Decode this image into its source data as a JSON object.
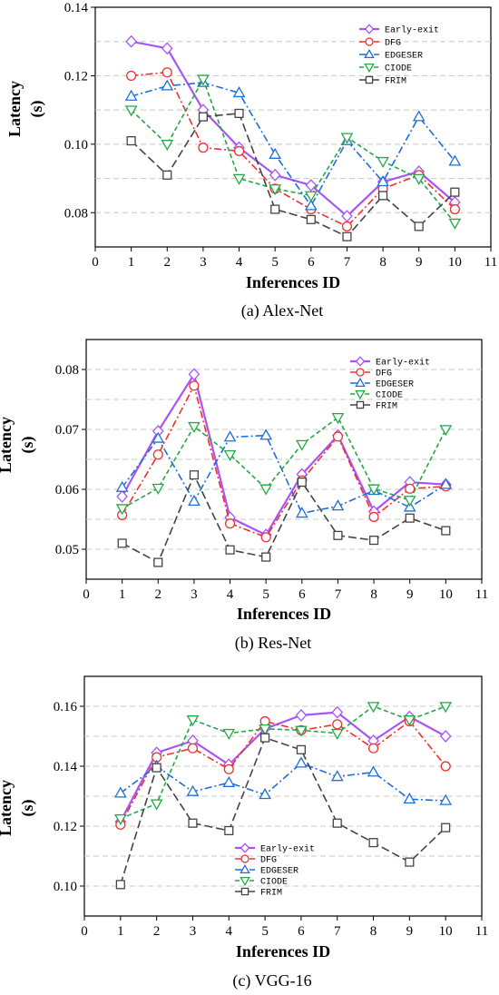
{
  "chart_data": [
    {
      "type": "line",
      "title": "",
      "caption": "(a) Alex-Net",
      "xlabel": "Inferences ID",
      "ylabel_line1": "Latency",
      "ylabel_line2": "(s)",
      "xlim": [
        0,
        11
      ],
      "ylim": [
        0.07,
        0.14
      ],
      "xticks": [
        "0",
        "1",
        "2",
        "3",
        "4",
        "5",
        "6",
        "7",
        "8",
        "9",
        "10",
        "11"
      ],
      "yticks": [
        {
          "v": 0.08,
          "label": "0.08"
        },
        {
          "v": 0.1,
          "label": "0.10"
        },
        {
          "v": 0.12,
          "label": "0.12"
        },
        {
          "v": 0.14,
          "label": "0.14"
        }
      ],
      "grid_lines": [
        0.08,
        0.09,
        0.1,
        0.11,
        0.12,
        0.13
      ],
      "legend_position": "top-right",
      "x": [
        1,
        2,
        3,
        4,
        5,
        6,
        7,
        8,
        9,
        10
      ],
      "series": [
        {
          "name": "Early-exit",
          "color": "#a855f7",
          "marker": "diamond",
          "dash": "solid",
          "width": 2.2,
          "values": [
            0.13,
            0.128,
            0.11,
            0.099,
            0.091,
            0.088,
            0.079,
            0.089,
            0.092,
            0.083
          ]
        },
        {
          "name": "DFG",
          "color": "#ef3030",
          "marker": "circle",
          "dash": "dashdot",
          "width": 1.6,
          "values": [
            0.12,
            0.121,
            0.099,
            0.098,
            0.087,
            0.081,
            0.076,
            0.087,
            0.091,
            0.081
          ]
        },
        {
          "name": "EDGESER",
          "color": "#1e6fd9",
          "marker": "triangle-up",
          "dash": "dashdot",
          "width": 1.6,
          "values": [
            0.114,
            0.117,
            0.118,
            0.115,
            0.097,
            0.082,
            0.101,
            0.089,
            0.108,
            0.095
          ]
        },
        {
          "name": "CIODE",
          "color": "#22a845",
          "marker": "triangle-down",
          "dash": "dash",
          "width": 1.6,
          "values": [
            0.11,
            0.1,
            0.119,
            0.09,
            0.087,
            0.085,
            0.102,
            0.095,
            0.09,
            0.077
          ]
        },
        {
          "name": "FRIM",
          "color": "#444444",
          "marker": "square",
          "dash": "longdash",
          "width": 1.6,
          "values": [
            0.101,
            0.091,
            0.108,
            0.109,
            0.081,
            0.078,
            0.073,
            0.085,
            0.076,
            0.086
          ]
        }
      ]
    },
    {
      "type": "line",
      "title": "",
      "caption": "(b) Res-Net",
      "xlabel": "Inferences ID",
      "ylabel_line1": "Latency",
      "ylabel_line2": "(s)",
      "xlim": [
        0,
        11
      ],
      "ylim": [
        0.045,
        0.085
      ],
      "xticks": [
        "0",
        "1",
        "2",
        "3",
        "4",
        "5",
        "6",
        "7",
        "8",
        "9",
        "10",
        "11"
      ],
      "yticks": [
        {
          "v": 0.05,
          "label": "0.05"
        },
        {
          "v": 0.06,
          "label": "0.06"
        },
        {
          "v": 0.07,
          "label": "0.07"
        },
        {
          "v": 0.08,
          "label": "0.08"
        }
      ],
      "grid_lines": [
        0.05,
        0.055,
        0.06,
        0.065,
        0.07,
        0.075,
        0.08
      ],
      "legend_position": "top-right",
      "x": [
        1,
        2,
        3,
        4,
        5,
        6,
        7,
        8,
        9,
        10
      ],
      "series": [
        {
          "name": "Early-exit",
          "color": "#a855f7",
          "marker": "diamond",
          "dash": "solid",
          "width": 2.2,
          "values": [
            0.0588,
            0.0697,
            0.0792,
            0.0553,
            0.0524,
            0.0625,
            0.069,
            0.0563,
            0.0612,
            0.0608
          ]
        },
        {
          "name": "DFG",
          "color": "#ef3030",
          "marker": "circle",
          "dash": "dashdot",
          "width": 1.6,
          "values": [
            0.0557,
            0.0658,
            0.0773,
            0.0543,
            0.052,
            0.0615,
            0.0688,
            0.0554,
            0.0601,
            0.0605
          ]
        },
        {
          "name": "EDGESER",
          "color": "#1e6fd9",
          "marker": "triangle-up",
          "dash": "dashdot",
          "width": 1.6,
          "values": [
            0.0603,
            0.0685,
            0.058,
            0.0687,
            0.069,
            0.056,
            0.0572,
            0.0598,
            0.057,
            0.0608
          ]
        },
        {
          "name": "CIODE",
          "color": "#22a845",
          "marker": "triangle-down",
          "dash": "dash",
          "width": 1.6,
          "values": [
            0.0568,
            0.0602,
            0.0705,
            0.0658,
            0.0601,
            0.0675,
            0.072,
            0.0601,
            0.0582,
            0.07
          ]
        },
        {
          "name": "FRIM",
          "color": "#444444",
          "marker": "square",
          "dash": "longdash",
          "width": 1.6,
          "values": [
            0.051,
            0.0478,
            0.0624,
            0.0499,
            0.0487,
            0.0612,
            0.0523,
            0.0515,
            0.0552,
            0.0531
          ]
        }
      ]
    },
    {
      "type": "line",
      "title": "",
      "caption": "(c) VGG-16",
      "xlabel": "Inferences ID",
      "ylabel_line1": "Latency",
      "ylabel_line2": "(s)",
      "xlim": [
        0,
        11
      ],
      "ylim": [
        0.09,
        0.17
      ],
      "xticks": [
        "0",
        "1",
        "2",
        "3",
        "4",
        "5",
        "6",
        "7",
        "8",
        "9",
        "10",
        "11"
      ],
      "yticks": [
        {
          "v": 0.1,
          "label": "0.10"
        },
        {
          "v": 0.12,
          "label": "0.12"
        },
        {
          "v": 0.14,
          "label": "0.14"
        },
        {
          "v": 0.16,
          "label": "0.16"
        }
      ],
      "grid_lines": [
        0.1,
        0.11,
        0.12,
        0.13,
        0.14,
        0.15,
        0.16
      ],
      "legend_position": "lower-left",
      "x": [
        1,
        2,
        3,
        4,
        5,
        6,
        7,
        8,
        9,
        10
      ],
      "series": [
        {
          "name": "Early-exit",
          "color": "#a855f7",
          "marker": "diamond",
          "dash": "solid",
          "width": 2.2,
          "values": [
            0.1215,
            0.1445,
            0.1485,
            0.1405,
            0.1525,
            0.157,
            0.158,
            0.1485,
            0.1565,
            0.15
          ]
        },
        {
          "name": "DFG",
          "color": "#ef3030",
          "marker": "circle",
          "dash": "dashdot",
          "width": 1.6,
          "values": [
            0.1205,
            0.143,
            0.146,
            0.139,
            0.155,
            0.152,
            0.154,
            0.146,
            0.155,
            0.14
          ]
        },
        {
          "name": "EDGESER",
          "color": "#1e6fd9",
          "marker": "triangle-up",
          "dash": "dashdot",
          "width": 1.6,
          "values": [
            0.131,
            0.14,
            0.1315,
            0.1345,
            0.1305,
            0.141,
            0.1365,
            0.138,
            0.129,
            0.1285
          ]
        },
        {
          "name": "CIODE",
          "color": "#22a845",
          "marker": "triangle-down",
          "dash": "dash",
          "width": 1.6,
          "values": [
            0.1225,
            0.1275,
            0.1555,
            0.151,
            0.1525,
            0.152,
            0.151,
            0.16,
            0.1555,
            0.16
          ]
        },
        {
          "name": "FRIM",
          "color": "#444444",
          "marker": "square",
          "dash": "longdash",
          "width": 1.6,
          "values": [
            0.1005,
            0.1395,
            0.121,
            0.1185,
            0.1495,
            0.1455,
            0.121,
            0.1145,
            0.108,
            0.1195
          ]
        }
      ]
    }
  ]
}
